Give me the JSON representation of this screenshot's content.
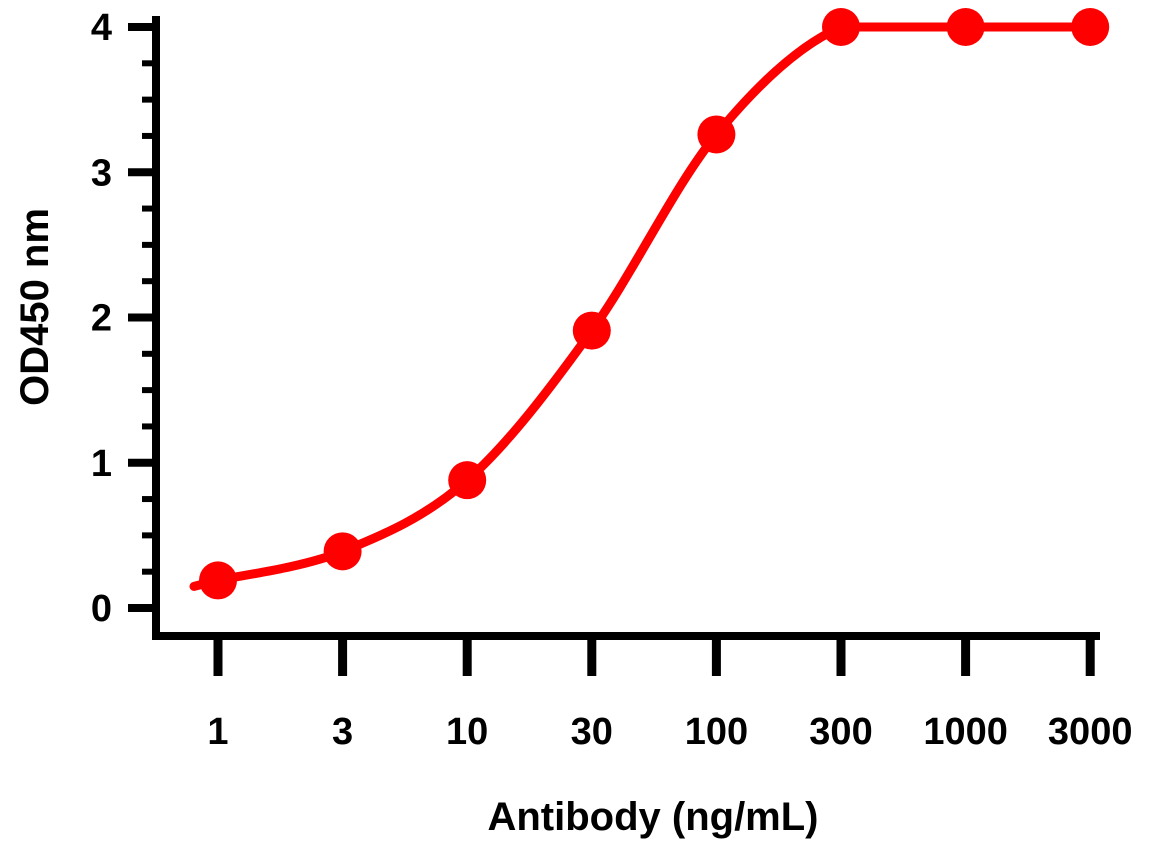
{
  "chart_data": {
    "type": "line",
    "title": "",
    "xlabel": "Antibody (ng/mL)",
    "ylabel": "OD450 nm",
    "x_scale": "categorical (log-spaced)",
    "categories": [
      "1",
      "3",
      "10",
      "30",
      "100",
      "300",
      "1000",
      "3000"
    ],
    "ylim": [
      0,
      4
    ],
    "yticks": [
      "0",
      "1",
      "2",
      "3",
      "4"
    ],
    "series": [
      {
        "name": "OD450",
        "color": "#ff0000",
        "marker": "circle",
        "values": [
          0.19,
          0.39,
          0.88,
          1.91,
          3.26,
          4.0,
          4.0,
          4.0
        ]
      }
    ],
    "grid": false,
    "legend": "none"
  }
}
